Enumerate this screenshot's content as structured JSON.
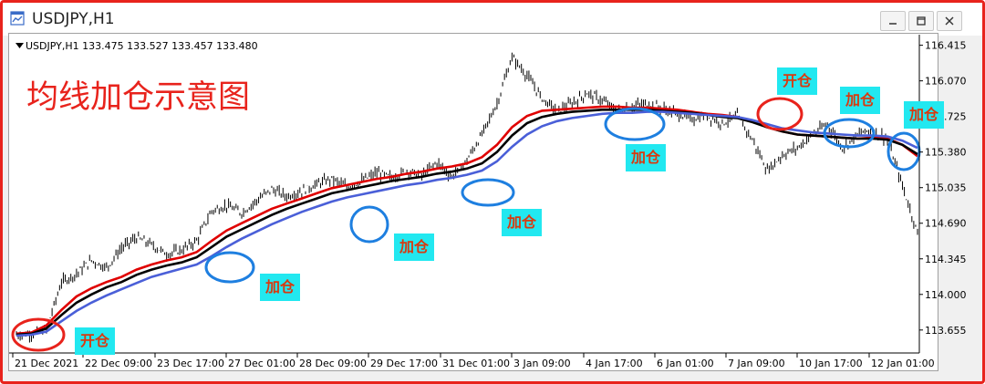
{
  "window": {
    "title": "USDJPY,H1",
    "app_icon": "chart-window-icon",
    "controls": [
      "minimize-icon",
      "restore-icon",
      "close-icon"
    ]
  },
  "chart_info": {
    "symbol_line": "USDJPY,H1  133.475 133.527 133.457 133.480"
  },
  "annotation_title": "均线加仓示意图",
  "tags": [
    "开仓",
    "加仓",
    "加仓",
    "加仓",
    "加仓",
    "开仓",
    "加仓",
    "加仓"
  ],
  "colors": {
    "frame_border": "#e8231c",
    "ma_fast": "#e00000",
    "ma_mid": "#000000",
    "ma_slow": "#4a5fd8",
    "circle_blue": "#1e7fe0",
    "circle_red": "#e8231c",
    "tag_bg": "#22e8f0",
    "tag_text": "#d83a10"
  },
  "chart_data": {
    "type": "line",
    "title": "",
    "xlabel": "",
    "ylabel": "",
    "ylim": [
      113.45,
      116.5
    ],
    "yticks": [
      "116.415",
      "116.070",
      "115.725",
      "115.380",
      "115.035",
      "114.690",
      "114.345",
      "114.000",
      "113.655"
    ],
    "xticks": [
      "21 Dec 2021",
      "22 Dec 09:00",
      "23 Dec 17:00",
      "27 Dec 01:00",
      "28 Dec 09:00",
      "29 Dec 17:00",
      "31 Dec 01:00",
      "3 Jan 09:00",
      "4 Jan 17:00",
      "6 Jan 01:00",
      "7 Jan 09:00",
      "10 Jan 17:00",
      "12 Jan 01:00"
    ],
    "grid": false,
    "legend": "none",
    "price_x_index": [
      0,
      2,
      4,
      6,
      8,
      10,
      12,
      14,
      16,
      18,
      20,
      22,
      24,
      26,
      28,
      30,
      32,
      34,
      36,
      38,
      40,
      42,
      44,
      46,
      48,
      50,
      52,
      54,
      56,
      58,
      60,
      62,
      64,
      66,
      68,
      70,
      72,
      74,
      76,
      78,
      80,
      82,
      84,
      86,
      88,
      90,
      92,
      94,
      96,
      98,
      100,
      102,
      104,
      106,
      108,
      110,
      112,
      114,
      116,
      118,
      120
    ],
    "series": [
      {
        "name": "",
        "values": [
          113.61,
          113.62,
          113.66,
          114.12,
          114.2,
          114.33,
          114.26,
          114.45,
          114.55,
          114.48,
          114.39,
          114.43,
          114.52,
          114.81,
          114.86,
          114.79,
          114.91,
          115.02,
          114.95,
          115.0,
          115.07,
          115.12,
          115.04,
          115.1,
          115.18,
          115.13,
          115.2,
          115.15,
          115.28,
          115.14,
          115.3,
          115.55,
          115.85,
          116.3,
          116.12,
          115.9,
          115.78,
          115.85,
          115.95,
          115.88,
          115.78,
          115.82,
          115.85,
          115.8,
          115.75,
          115.7,
          115.73,
          115.66,
          115.73,
          115.5,
          115.2,
          115.35,
          115.42,
          115.55,
          115.65,
          115.42,
          115.55,
          115.6,
          115.5,
          115.05,
          114.6
        ]
      },
      {
        "name": "",
        "values": [
          113.62,
          113.63,
          113.7,
          113.85,
          113.98,
          114.06,
          114.12,
          114.17,
          114.24,
          114.29,
          114.33,
          114.36,
          114.41,
          114.52,
          114.62,
          114.69,
          114.76,
          114.83,
          114.88,
          114.93,
          114.98,
          115.03,
          115.06,
          115.09,
          115.12,
          115.14,
          115.17,
          115.19,
          115.22,
          115.24,
          115.27,
          115.33,
          115.45,
          115.62,
          115.73,
          115.78,
          115.79,
          115.8,
          115.81,
          115.82,
          115.82,
          115.81,
          115.81,
          115.8,
          115.79,
          115.77,
          115.75,
          115.74,
          115.72,
          115.68,
          115.62,
          115.58,
          115.55,
          115.54,
          115.53,
          115.52,
          115.51,
          115.52,
          115.51,
          115.45,
          115.34
        ]
      },
      {
        "name": "",
        "values": [
          113.61,
          113.62,
          113.67,
          113.8,
          113.92,
          114.0,
          114.07,
          114.12,
          114.19,
          114.24,
          114.28,
          114.31,
          114.36,
          114.46,
          114.56,
          114.63,
          114.7,
          114.77,
          114.83,
          114.88,
          114.93,
          114.98,
          115.01,
          115.04,
          115.07,
          115.1,
          115.12,
          115.14,
          115.17,
          115.19,
          115.22,
          115.27,
          115.38,
          115.54,
          115.66,
          115.72,
          115.75,
          115.77,
          115.78,
          115.79,
          115.79,
          115.79,
          115.79,
          115.78,
          115.77,
          115.76,
          115.74,
          115.72,
          115.71,
          115.67,
          115.62,
          115.58,
          115.55,
          115.54,
          115.53,
          115.52,
          115.51,
          115.51,
          115.5,
          115.45,
          115.36
        ]
      },
      {
        "name": "",
        "values": [
          113.6,
          113.61,
          113.64,
          113.74,
          113.84,
          113.92,
          113.99,
          114.05,
          114.11,
          114.17,
          114.21,
          114.25,
          114.29,
          114.37,
          114.46,
          114.54,
          114.61,
          114.68,
          114.74,
          114.8,
          114.85,
          114.9,
          114.94,
          114.97,
          115.0,
          115.03,
          115.06,
          115.08,
          115.11,
          115.13,
          115.16,
          115.2,
          115.29,
          115.43,
          115.55,
          115.63,
          115.68,
          115.71,
          115.73,
          115.75,
          115.76,
          115.76,
          115.77,
          115.77,
          115.76,
          115.75,
          115.74,
          115.73,
          115.72,
          115.69,
          115.65,
          115.61,
          115.59,
          115.57,
          115.56,
          115.55,
          115.54,
          115.54,
          115.53,
          115.49,
          115.42
        ]
      }
    ]
  }
}
